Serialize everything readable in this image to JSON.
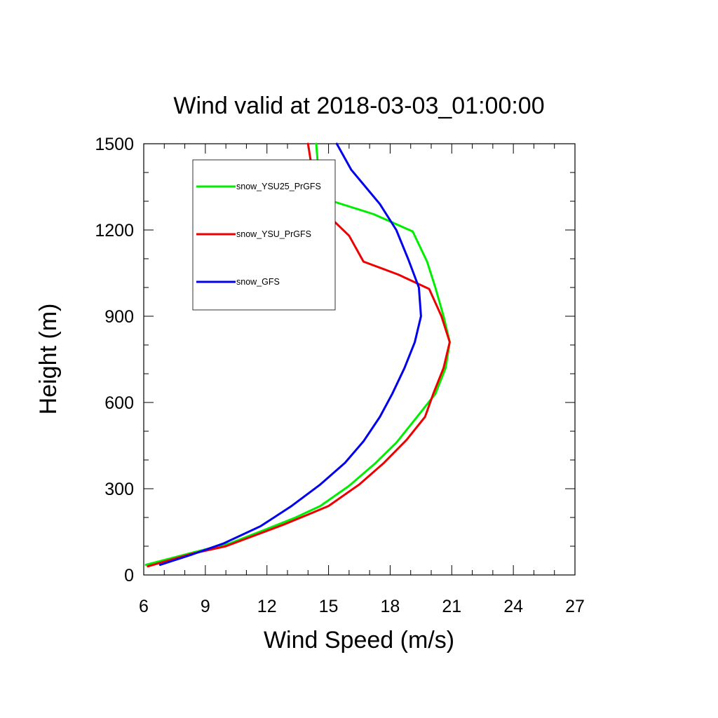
{
  "chart_data": {
    "type": "line",
    "title": "Wind valid at 2018-03-03_01:00:00",
    "xlabel": "Wind Speed (m/s)",
    "ylabel": "Height (m)",
    "xlim": [
      6,
      27
    ],
    "ylim": [
      0,
      1500
    ],
    "xticks": [
      "6",
      "9",
      "12",
      "15",
      "18",
      "21",
      "24",
      "27"
    ],
    "yticks": [
      "0",
      "300",
      "600",
      "900",
      "1200",
      "1500"
    ],
    "grid": false,
    "legend_position": "top-left inside",
    "series": [
      {
        "name": "snow_YSU25_PrGFS",
        "color": "#00ee00",
        "x": [
          6.1,
          8.5,
          10.2,
          12.0,
          13.4,
          14.6,
          16.0,
          17.3,
          18.3,
          19.2,
          20.2,
          20.7,
          20.9,
          20.6,
          20.2,
          19.8,
          19.1,
          17.2,
          15.2,
          14.8,
          14.5,
          14.4
        ],
        "y": [
          35,
          80,
          110,
          160,
          200,
          240,
          310,
          390,
          460,
          540,
          630,
          720,
          810,
          900,
          1000,
          1090,
          1195,
          1255,
          1300,
          1350,
          1410,
          1500
        ]
      },
      {
        "name": "snow_YSU_PrGFS",
        "color": "#ee0000",
        "x": [
          6.2,
          8.4,
          10.0,
          11.5,
          12.8,
          14.0,
          15.0,
          16.5,
          17.7,
          18.8,
          19.7,
          20.1,
          20.6,
          20.9,
          20.5,
          19.9,
          18.4,
          16.7,
          16.0,
          15.2,
          14.5,
          14.2,
          14.0
        ],
        "y": [
          30,
          75,
          100,
          140,
          175,
          210,
          240,
          315,
          390,
          470,
          550,
          630,
          720,
          810,
          900,
          995,
          1045,
          1090,
          1180,
          1235,
          1300,
          1410,
          1500
        ]
      },
      {
        "name": "snow_GFS",
        "color": "#0000ee",
        "x": [
          6.8,
          8.3,
          9.9,
          11.7,
          13.2,
          14.6,
          15.8,
          16.7,
          17.5,
          18.1,
          18.7,
          19.2,
          19.5,
          19.4,
          18.9,
          18.3,
          17.5,
          16.8,
          16.1,
          15.4
        ],
        "y": [
          35,
          70,
          110,
          170,
          240,
          315,
          390,
          465,
          550,
          630,
          720,
          810,
          900,
          1000,
          1095,
          1200,
          1290,
          1350,
          1410,
          1500
        ]
      }
    ]
  }
}
